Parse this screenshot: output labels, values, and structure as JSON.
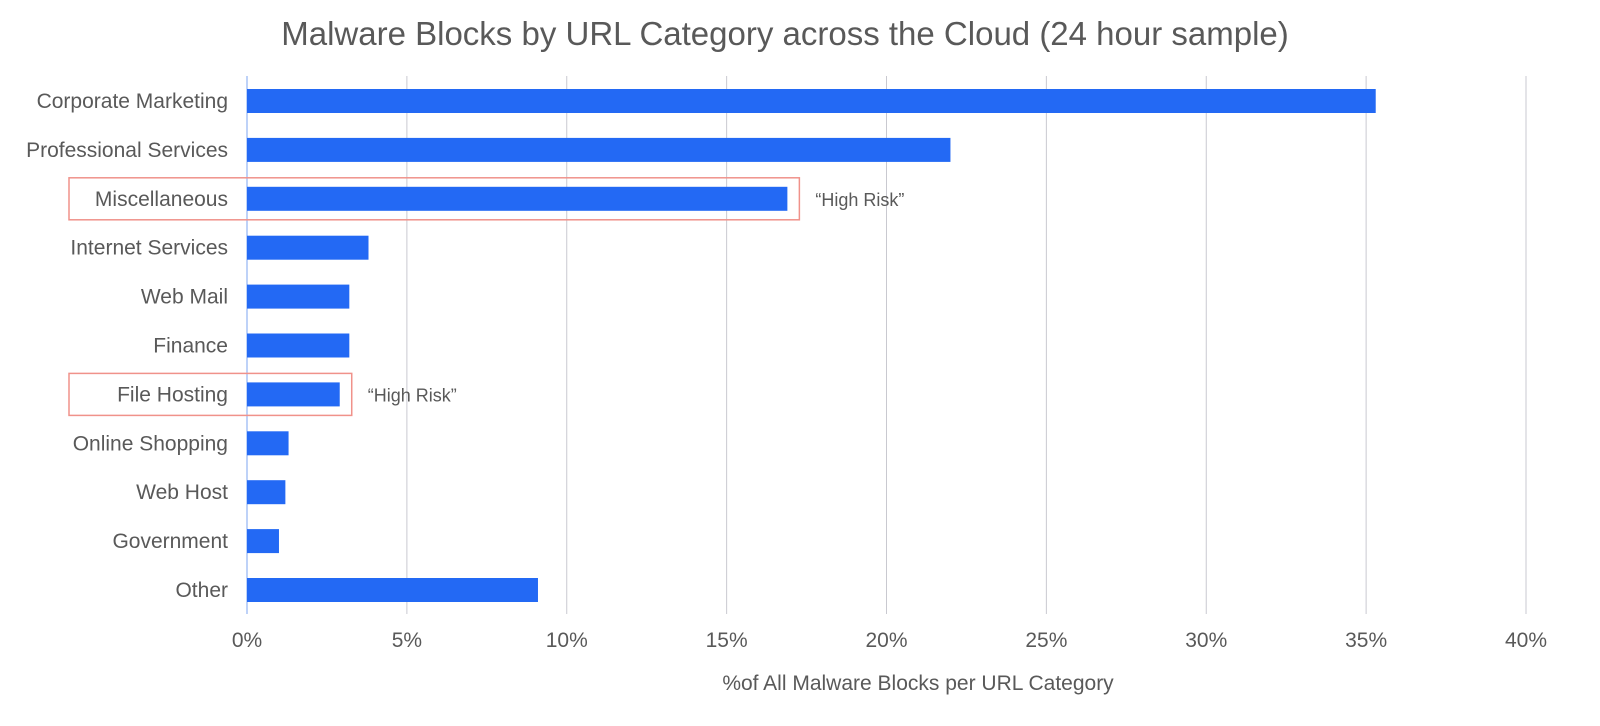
{
  "chart_data": {
    "type": "bar",
    "orientation": "horizontal",
    "title": "Malware Blocks by URL Category across the Cloud (24 hour sample)",
    "xlabel": "%of All Malware Blocks per URL Category",
    "ylabel": "",
    "xlim": [
      0,
      40
    ],
    "x_ticks": [
      "0%",
      "5%",
      "10%",
      "15%",
      "20%",
      "25%",
      "30%",
      "35%",
      "40%"
    ],
    "grid": "vertical",
    "bar_color": "#2369f4",
    "grid_color": "#c9c9d0",
    "highlight_color": "#f0928a",
    "categories": [
      "Corporate Marketing",
      "Professional Services",
      "Miscellaneous",
      "Internet Services",
      "Web Mail",
      "Finance",
      "File Hosting",
      "Online Shopping",
      "Web Host",
      "Government",
      "Other"
    ],
    "values": [
      35.3,
      22.0,
      16.9,
      3.8,
      3.2,
      3.2,
      2.9,
      1.3,
      1.2,
      1.0,
      9.1
    ],
    "annotations": [
      {
        "category": "Miscellaneous",
        "text": "“High Risk”"
      },
      {
        "category": "File Hosting",
        "text": "“High Risk”"
      }
    ]
  }
}
